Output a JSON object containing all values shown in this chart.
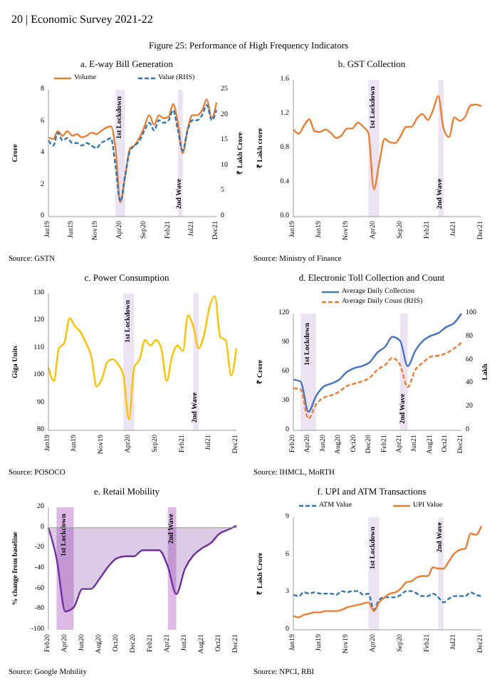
{
  "chart_data": [
    {
      "type": "other",
      "title": "Figure 25: Performance of High Frequency Indicators",
      "annotations": [
        "20 | Economic Survey 2021-22"
      ]
    },
    {
      "type": "line",
      "title": "a.  E-way Bill Generation",
      "ylabel": "Crore",
      "y2label": "₹ Lakh Crore",
      "legend": "top",
      "annotations": [
        "Source: GSTN"
      ],
      "x": [
        "2019-01",
        "2019-02",
        "2019-03",
        "2019-04",
        "2019-05",
        "2019-06",
        "2019-07",
        "2019-08",
        "2019-09",
        "2019-10",
        "2019-11",
        "2019-12",
        "2020-01",
        "2020-02",
        "2020-03",
        "2020-04",
        "2020-05",
        "2020-06",
        "2020-07",
        "2020-08",
        "2020-09",
        "2020-10",
        "2020-11",
        "2020-12",
        "2021-01",
        "2021-02",
        "2021-03",
        "2021-04",
        "2021-05",
        "2021-06",
        "2021-07",
        "2021-08",
        "2021-09",
        "2021-10",
        "2021-11",
        "2021-12"
      ],
      "xlim": [
        "2019-01",
        "2021-12"
      ],
      "xticks": [
        {
          "value": "2019-01",
          "label": "Jan19"
        },
        {
          "value": "2019-06",
          "label": "Jun19"
        },
        {
          "value": "2019-11",
          "label": "Nov19"
        },
        {
          "value": "2020-04",
          "label": "Apr20"
        },
        {
          "value": "2020-09",
          "label": "Sep20"
        },
        {
          "value": "2021-02",
          "label": "Feb21"
        },
        {
          "value": "2021-07",
          "label": "Jul21"
        },
        {
          "value": "2021-12",
          "label": "Dec21"
        }
      ],
      "ylim": [
        0,
        8
      ],
      "yticks": [
        0,
        2,
        4,
        6,
        8
      ],
      "y2lim": [
        0,
        25
      ],
      "y2ticks": [
        0,
        5,
        10,
        15,
        20,
        25
      ],
      "bands": [
        {
          "axis": "x",
          "from": "2020-03",
          "to": "2020-05",
          "label": "1st Lockdown",
          "color": "#ddd0ea"
        },
        {
          "axis": "x",
          "from": "2021-04",
          "to": "2021-05",
          "label": "2nd Wave",
          "color": "#ddd0ea"
        }
      ],
      "series": [
        {
          "name": "Volume",
          "color": "#ed7d31",
          "line_style": "solid",
          "values": [
            5.0,
            4.9,
            5.4,
            5.1,
            5.4,
            5.1,
            5.2,
            5.0,
            5.1,
            5.3,
            5.2,
            5.4,
            5.6,
            5.7,
            4.3,
            0.9,
            2.5,
            4.3,
            4.5,
            5.0,
            5.7,
            6.4,
            5.8,
            6.4,
            6.2,
            6.3,
            7.1,
            5.9,
            4.0,
            5.5,
            6.4,
            6.4,
            6.7,
            7.4,
            6.2,
            7.2
          ]
        },
        {
          "name": "Value (RHS)",
          "color": "#2e75b6",
          "line_style": "dashed",
          "axis": "y2",
          "values": [
            15,
            14,
            16.5,
            15,
            15.5,
            14.5,
            14.5,
            14,
            14.5,
            14,
            13.5,
            14.5,
            15,
            15.5,
            10,
            3,
            8,
            13,
            14,
            15,
            17,
            18.5,
            17,
            19,
            18.5,
            19,
            21,
            17,
            13,
            17,
            19,
            19,
            20,
            22,
            19,
            21
          ]
        }
      ]
    },
    {
      "type": "line",
      "title": "b.  GST Collection",
      "ylabel": "₹ Lakh crore",
      "annotations": [
        "Source: Ministry of Finance"
      ],
      "x": [
        "2019-01",
        "2019-02",
        "2019-03",
        "2019-04",
        "2019-05",
        "2019-06",
        "2019-07",
        "2019-08",
        "2019-09",
        "2019-10",
        "2019-11",
        "2019-12",
        "2020-01",
        "2020-02",
        "2020-03",
        "2020-04",
        "2020-05",
        "2020-06",
        "2020-07",
        "2020-08",
        "2020-09",
        "2020-10",
        "2020-11",
        "2020-12",
        "2021-01",
        "2021-02",
        "2021-03",
        "2021-04",
        "2021-05",
        "2021-06",
        "2021-07",
        "2021-08",
        "2021-09",
        "2021-10",
        "2021-11",
        "2021-12"
      ],
      "xlim": [
        "2019-01",
        "2021-12"
      ],
      "xticks": [
        {
          "value": "2019-01",
          "label": "Jan19"
        },
        {
          "value": "2019-06",
          "label": "Jun19"
        },
        {
          "value": "2019-11",
          "label": "Nov19"
        },
        {
          "value": "2020-04",
          "label": "Apr20"
        },
        {
          "value": "2020-09",
          "label": "Sep20"
        },
        {
          "value": "2021-02",
          "label": "Feb21"
        },
        {
          "value": "2021-07",
          "label": "Jul21"
        },
        {
          "value": "2021-12",
          "label": "Dec21"
        }
      ],
      "ylim": [
        0,
        1.6
      ],
      "yticks": [
        {
          "value": 0,
          "label": "0.0"
        },
        0.4,
        0.8,
        1.2,
        1.6
      ],
      "bands": [
        {
          "axis": "x",
          "from": "2020-03",
          "to": "2020-05",
          "label": "1st Lockdown",
          "color": "#ddd0ea"
        },
        {
          "axis": "x",
          "from": "2021-04",
          "to": "2021-05",
          "label": "2nd Wave",
          "color": "#ddd0ea"
        }
      ],
      "series": [
        {
          "color": "#ed7d31",
          "values": [
            1.02,
            0.97,
            1.06,
            1.14,
            1.0,
            0.99,
            1.02,
            0.98,
            0.92,
            0.95,
            1.03,
            1.03,
            1.1,
            1.05,
            0.98,
            0.32,
            0.62,
            0.91,
            0.87,
            0.86,
            0.95,
            1.05,
            1.05,
            1.15,
            1.2,
            1.13,
            1.24,
            1.41,
            1.03,
            0.93,
            1.16,
            1.12,
            1.17,
            1.3,
            1.31,
            1.29
          ]
        }
      ]
    },
    {
      "type": "line",
      "title": "c.  Power Consumption",
      "ylabel": "Giga Units",
      "annotations": [
        "Source: POSOCO"
      ],
      "x": [
        "2019-01",
        "2019-02",
        "2019-03",
        "2019-04",
        "2019-05",
        "2019-06",
        "2019-07",
        "2019-08",
        "2019-09",
        "2019-10",
        "2019-11",
        "2019-12",
        "2020-01",
        "2020-02",
        "2020-03",
        "2020-04",
        "2020-05",
        "2020-06",
        "2020-07",
        "2020-08",
        "2020-09",
        "2020-10",
        "2020-11",
        "2020-12",
        "2021-01",
        "2021-02",
        "2021-03",
        "2021-04",
        "2021-05",
        "2021-06",
        "2021-07",
        "2021-08",
        "2021-09",
        "2021-10",
        "2021-11",
        "2021-12"
      ],
      "xlim": [
        "2019-01",
        "2021-12"
      ],
      "xticks": [
        {
          "value": "2019-01",
          "label": "Jan19"
        },
        {
          "value": "2019-06",
          "label": "Jun19"
        },
        {
          "value": "2019-11",
          "label": "Nov19"
        },
        {
          "value": "2020-04",
          "label": "Apr20"
        },
        {
          "value": "2020-09",
          "label": "Sep20"
        },
        {
          "value": "2021-02",
          "label": "Feb21"
        },
        {
          "value": "2021-07",
          "label": "Jul21"
        },
        {
          "value": "2021-12",
          "label": "Dec21"
        }
      ],
      "ylim": [
        80,
        130
      ],
      "yticks": [
        80,
        90,
        100,
        110,
        120,
        130
      ],
      "bands": [
        {
          "axis": "x",
          "from": "2020-03",
          "to": "2020-05",
          "label": "1st Lockdown",
          "color": "#ddd0ea"
        },
        {
          "axis": "x",
          "from": "2021-04",
          "to": "2021-05",
          "label": "2nd Wave",
          "color": "#ddd0ea"
        }
      ],
      "series": [
        {
          "color": "#ffc000",
          "values": [
            103,
            98,
            110,
            112,
            121,
            118,
            116,
            112,
            107,
            96,
            99,
            105,
            106,
            104,
            100,
            84,
            103,
            106,
            113,
            111,
            113,
            110,
            98,
            107,
            111,
            109,
            122,
            118,
            110,
            115,
            125,
            129,
            114,
            113,
            100,
            110
          ]
        }
      ]
    },
    {
      "type": "line",
      "title": "d.  Electronic Toll Collection and Count",
      "ylabel": "₹ Crore",
      "y2label": "Lakh",
      "legend": "top",
      "annotations": [
        "Source: IHMCL, MoRTH"
      ],
      "x": [
        "2020-02",
        "2020-03",
        "2020-04",
        "2020-05",
        "2020-06",
        "2020-07",
        "2020-08",
        "2020-09",
        "2020-10",
        "2020-11",
        "2020-12",
        "2021-01",
        "2021-02",
        "2021-03",
        "2021-04",
        "2021-05",
        "2021-06",
        "2021-07",
        "2021-08",
        "2021-09",
        "2021-10",
        "2021-11",
        "2021-12"
      ],
      "xlim": [
        "2020-02",
        "2021-12"
      ],
      "xticks": [
        {
          "value": "2020-02",
          "label": "Feb20"
        },
        {
          "value": "2020-04",
          "label": "Apr20"
        },
        {
          "value": "2020-06",
          "label": "Jun20"
        },
        {
          "value": "2020-08",
          "label": "Aug20"
        },
        {
          "value": "2020-10",
          "label": "Oct20"
        },
        {
          "value": "2020-12",
          "label": "Dec20"
        },
        {
          "value": "2021-02",
          "label": "Feb21"
        },
        {
          "value": "2021-04",
          "label": "Apr21"
        },
        {
          "value": "2021-06",
          "label": "Jun21"
        },
        {
          "value": "2021-08",
          "label": "Aug21"
        },
        {
          "value": "2021-10",
          "label": "Oct21"
        },
        {
          "value": "2021-12",
          "label": "Dec21"
        }
      ],
      "ylim": [
        0,
        120
      ],
      "yticks": [
        0,
        30,
        60,
        90,
        120
      ],
      "y2lim": [
        0,
        100
      ],
      "y2ticks": [
        0,
        20,
        40,
        60,
        80,
        100
      ],
      "bands": [
        {
          "axis": "x",
          "from": "2020-03",
          "to": "2020-05",
          "label": "1st Lockdown",
          "color": "#ddd0ea"
        },
        {
          "axis": "x",
          "from": "2021-04",
          "to": "2021-05",
          "label": "2nd Wave",
          "color": "#ddd0ea"
        }
      ],
      "series": [
        {
          "name": "Average Daily Collection",
          "color": "#4472c4",
          "line_style": "solid",
          "values": [
            52,
            50,
            19,
            35,
            45,
            48,
            52,
            60,
            64,
            66,
            70,
            80,
            86,
            96,
            92,
            66,
            82,
            92,
            97,
            100,
            106,
            110,
            120
          ]
        },
        {
          "name": "Average Daily Count (RHS)",
          "color": "#ed7d31",
          "line_style": "dashed",
          "axis": "y2",
          "values": [
            36,
            35,
            10,
            22,
            28,
            30,
            33,
            38,
            40,
            42,
            45,
            52,
            56,
            62,
            56,
            37,
            52,
            58,
            63,
            64,
            66,
            70,
            75
          ]
        }
      ]
    },
    {
      "type": "area",
      "title": "e.  Retail Mobility",
      "ylabel": "% change from baseline",
      "annotations": [
        "Source: Google Mobility"
      ],
      "x": [
        "2020-02",
        "2020-03",
        "2020-04",
        "2020-05",
        "2020-06",
        "2020-07",
        "2020-08",
        "2020-09",
        "2020-10",
        "2020-11",
        "2020-12",
        "2021-01",
        "2021-02",
        "2021-03",
        "2021-04",
        "2021-05",
        "2021-06",
        "2021-07",
        "2021-08",
        "2021-09",
        "2021-10",
        "2021-11",
        "2021-12"
      ],
      "xlim": [
        "2020-02",
        "2021-12"
      ],
      "xticks": [
        {
          "value": "2020-02",
          "label": "Feb20"
        },
        {
          "value": "2020-04",
          "label": "Apr20"
        },
        {
          "value": "2020-06",
          "label": "Jun20"
        },
        {
          "value": "2020-08",
          "label": "Aug20"
        },
        {
          "value": "2020-10",
          "label": "Oct20"
        },
        {
          "value": "2020-12",
          "label": "Dec20"
        },
        {
          "value": "2021-02",
          "label": "Feb21"
        },
        {
          "value": "2021-04",
          "label": "Apr21"
        },
        {
          "value": "2021-06",
          "label": "Jun21"
        },
        {
          "value": "2021-08",
          "label": "Aug21"
        },
        {
          "value": "2021-10",
          "label": "Oct21"
        },
        {
          "value": "2021-12",
          "label": "Dec21"
        }
      ],
      "ylim": [
        -100,
        20
      ],
      "yticks": [
        -100,
        -80,
        -60,
        -40,
        -20,
        0,
        20
      ],
      "bands": [
        {
          "axis": "x",
          "from": "2020-03",
          "to": "2020-05",
          "label": "1st Lockdown",
          "color": "#c98bd6"
        },
        {
          "axis": "x",
          "from": "2021-04",
          "to": "2021-05",
          "label": "2nd Wave",
          "color": "#c98bd6"
        }
      ],
      "series": [
        {
          "color": "#7030a0",
          "values": [
            0,
            -30,
            -82,
            -78,
            -60,
            -60,
            -50,
            -38,
            -30,
            -28,
            -28,
            -22,
            -22,
            -22,
            -38,
            -65,
            -40,
            -27,
            -20,
            -15,
            -6,
            -2,
            2
          ]
        }
      ]
    },
    {
      "type": "line",
      "title": "f.  UPI and ATM Transactions",
      "ylabel": "₹ Lakh Crore",
      "legend": "top",
      "annotations": [
        "Source: NPCI, RBI"
      ],
      "x": [
        "2019-01",
        "2019-02",
        "2019-03",
        "2019-04",
        "2019-05",
        "2019-06",
        "2019-07",
        "2019-08",
        "2019-09",
        "2019-10",
        "2019-11",
        "2019-12",
        "2020-01",
        "2020-02",
        "2020-03",
        "2020-04",
        "2020-05",
        "2020-06",
        "2020-07",
        "2020-08",
        "2020-09",
        "2020-10",
        "2020-11",
        "2020-12",
        "2021-01",
        "2021-02",
        "2021-03",
        "2021-04",
        "2021-05",
        "2021-06",
        "2021-07",
        "2021-08",
        "2021-09",
        "2021-10",
        "2021-11",
        "2021-12"
      ],
      "xlim": [
        "2019-01",
        "2021-12"
      ],
      "xticks": [
        {
          "value": "2019-01",
          "label": "Jan19"
        },
        {
          "value": "2019-06",
          "label": "Jun19"
        },
        {
          "value": "2019-11",
          "label": "Nov19"
        },
        {
          "value": "2020-04",
          "label": "Apr20"
        },
        {
          "value": "2020-09",
          "label": "Sep20"
        },
        {
          "value": "2021-02",
          "label": "Feb21"
        },
        {
          "value": "2021-07",
          "label": "Jul21"
        },
        {
          "value": "2021-12",
          "label": "Dec21"
        }
      ],
      "ylim": [
        0,
        9
      ],
      "yticks": [
        0,
        3,
        6,
        9
      ],
      "bands": [
        {
          "axis": "x",
          "from": "2020-03",
          "to": "2020-05",
          "label": "1st Lockdown",
          "color": "#ddd0ea"
        },
        {
          "axis": "x",
          "from": "2021-04",
          "to": "2021-05",
          "label": "2nd Wave",
          "color": "#ddd0ea"
        }
      ],
      "series": [
        {
          "name": "ATM Value",
          "color": "#2e75b6",
          "line_style": "dashed",
          "values": [
            2.8,
            2.7,
            3.0,
            2.9,
            3.0,
            2.9,
            2.9,
            2.9,
            2.8,
            3.1,
            3.0,
            3.1,
            3.1,
            2.8,
            2.9,
            1.6,
            2.4,
            2.6,
            2.6,
            2.6,
            2.8,
            3.1,
            3.1,
            2.9,
            2.7,
            2.7,
            2.9,
            2.6,
            2.2,
            2.5,
            2.7,
            2.7,
            2.7,
            3.0,
            2.8,
            2.7
          ]
        },
        {
          "name": "UPI Value",
          "color": "#ed7d31",
          "line_style": "solid",
          "values": [
            1.1,
            1.0,
            1.2,
            1.3,
            1.4,
            1.4,
            1.5,
            1.5,
            1.5,
            1.6,
            1.8,
            1.9,
            2.0,
            2.1,
            2.2,
            1.5,
            2.2,
            2.6,
            2.9,
            3.0,
            3.3,
            3.8,
            3.9,
            4.2,
            4.3,
            4.3,
            5.0,
            4.9,
            4.9,
            5.5,
            6.1,
            6.4,
            6.5,
            7.7,
            7.6,
            8.3
          ]
        }
      ]
    }
  ]
}
